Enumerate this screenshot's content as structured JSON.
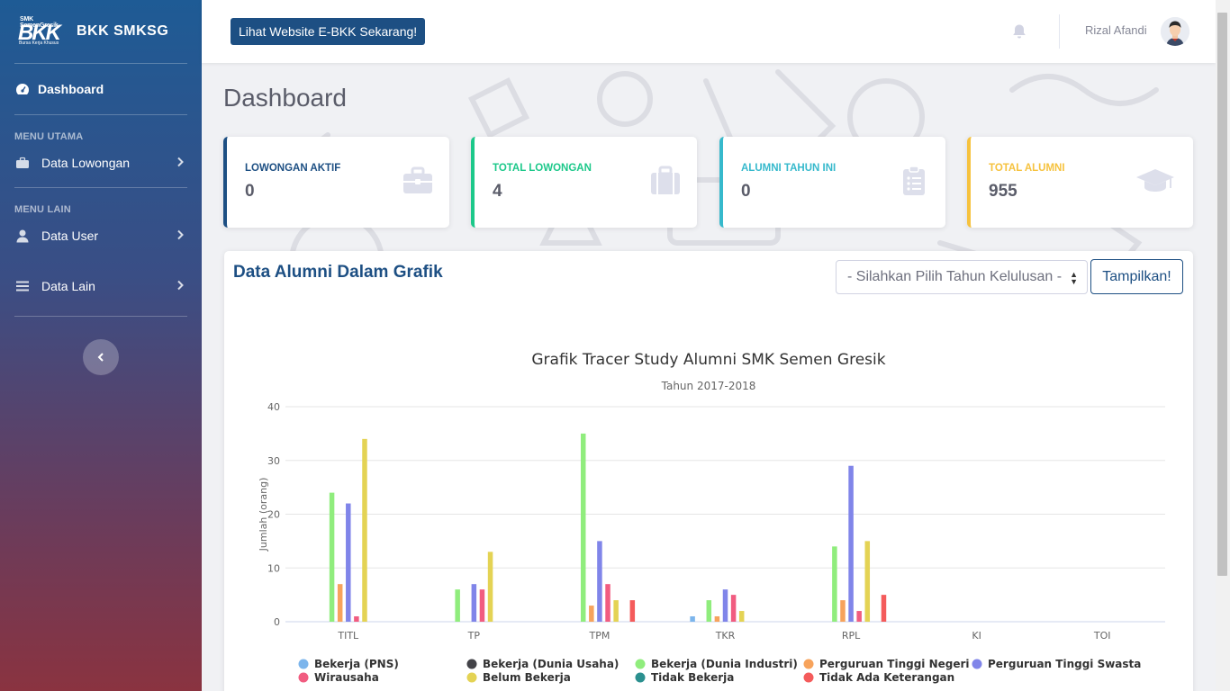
{
  "sidebar": {
    "logo_top": "SMK SemenGresik",
    "logo_big": "BKK",
    "logo_sub": "Bursa Kerja Khusus",
    "brand": "BKK SMKSG",
    "dashboard_label": "Dashboard",
    "section_main": "MENU UTAMA",
    "lowongan_label": "Data Lowongan",
    "section_other": "MENU LAIN",
    "user_label": "Data User",
    "lain_label": "Data Lain"
  },
  "topbar": {
    "website_button": "Lihat Website E-BKK Sekarang!",
    "username": "Rizal Afandi"
  },
  "page": {
    "title": "Dashboard"
  },
  "cards": [
    {
      "label": "LOWONGAN AKTIF",
      "value": "0",
      "color": "#1d4f83",
      "label_color": "#1d4f83"
    },
    {
      "label": "TOTAL LOWONGAN",
      "value": "4",
      "color": "#1cc88a",
      "label_color": "#1cc88a"
    },
    {
      "label": "ALUMNI TAHUN INI",
      "value": "0",
      "color": "#36b9cc",
      "label_color": "#36b9cc"
    },
    {
      "label": "TOTAL ALUMNI",
      "value": "955",
      "color": "#f6c23e",
      "label_color": "#f6c23e"
    }
  ],
  "panel": {
    "title": "Data Alumni Dalam Grafik",
    "select_value": "- Silahkan Pilih Tahun Kelulusan -",
    "show_button": "Tampilkan!"
  },
  "chart_data": {
    "type": "bar",
    "title": "Grafik Tracer Study Alumni SMK Semen Gresik",
    "subtitle": "Tahun 2017-2018",
    "xlabel": "",
    "ylabel": "Jumlah (orang)",
    "ylim": [
      0,
      40
    ],
    "yticks": [
      0,
      10,
      20,
      30,
      40
    ],
    "grid": true,
    "legend": "bottom",
    "categories": [
      "TITL",
      "TP",
      "TPM",
      "TKR",
      "RPL",
      "KI",
      "TOI"
    ],
    "series": [
      {
        "name": "Bekerja (PNS)",
        "color": "#7cb5ec",
        "values": [
          0,
          0,
          0,
          1,
          0,
          0,
          0
        ]
      },
      {
        "name": "Bekerja (Dunia Usaha)",
        "color": "#434348",
        "values": [
          0,
          0,
          0,
          0,
          0,
          0,
          0
        ]
      },
      {
        "name": "Bekerja (Dunia Industri)",
        "color": "#90ed7d",
        "values": [
          24,
          6,
          35,
          4,
          14,
          0,
          0
        ]
      },
      {
        "name": "Perguruan Tinggi Negeri",
        "color": "#f7a35c",
        "values": [
          7,
          0,
          3,
          1,
          4,
          0,
          0
        ]
      },
      {
        "name": "Perguruan Tinggi Swasta",
        "color": "#8085e9",
        "values": [
          22,
          7,
          15,
          6,
          29,
          0,
          0
        ]
      },
      {
        "name": "Wirausaha",
        "color": "#f15c80",
        "values": [
          1,
          6,
          7,
          5,
          2,
          0,
          0
        ]
      },
      {
        "name": "Belum Bekerja",
        "color": "#e4d354",
        "values": [
          34,
          13,
          4,
          2,
          15,
          0,
          0
        ]
      },
      {
        "name": "Tidak Bekerja",
        "color": "#2b908f",
        "values": [
          0,
          0,
          0,
          0,
          0,
          0,
          0
        ]
      },
      {
        "name": "Tidak Ada Keterangan",
        "color": "#f45b5b",
        "values": [
          0,
          0,
          4,
          0,
          5,
          0,
          0
        ]
      }
    ]
  }
}
